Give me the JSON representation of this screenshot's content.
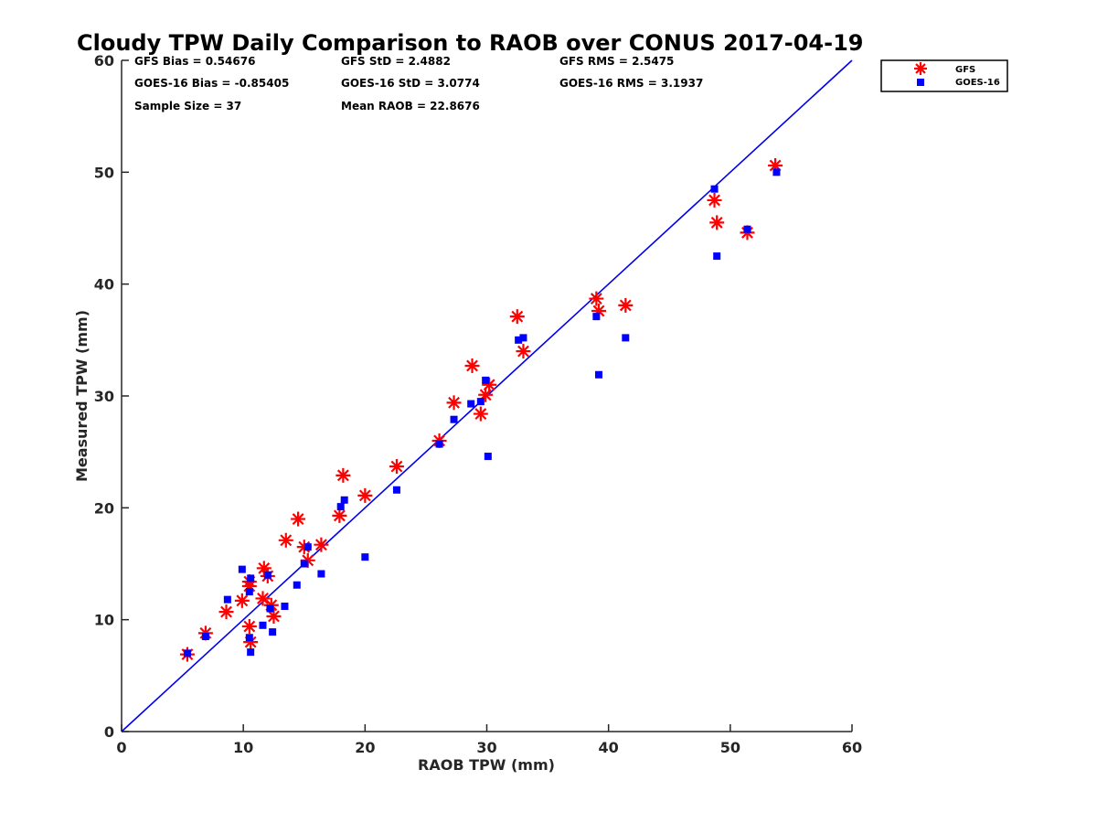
{
  "chart_data": {
    "type": "scatter",
    "title": "Cloudy TPW Daily Comparison to RAOB over CONUS 2017-04-19",
    "xlabel": "RAOB TPW (mm)",
    "ylabel": "Measured TPW (mm)",
    "xlim": [
      0,
      60
    ],
    "ylim": [
      0,
      60
    ],
    "xticks": [
      "0",
      "10",
      "20",
      "30",
      "40",
      "50",
      "60"
    ],
    "yticks": [
      "0",
      "10",
      "20",
      "30",
      "40",
      "50",
      "60"
    ],
    "grid": false,
    "legend_position": "outside-top-right",
    "stats": [
      "GFS Bias = 0.54676",
      "GFS StD = 2.4882",
      "GFS RMS = 2.5475",
      "GOES-16 Bias = -0.85405",
      "GOES-16 StD = 3.0774",
      "GOES-16 RMS = 3.1937",
      "Sample Size = 37",
      "Mean RAOB = 22.8676"
    ],
    "reference_line": {
      "x": [
        0,
        60
      ],
      "y": [
        0,
        60
      ],
      "color": "#0000ee"
    },
    "series": [
      {
        "name": "GFS",
        "marker": "asterisk",
        "color": "#ff0000",
        "x": [
          5.4,
          6.9,
          8.6,
          9.9,
          10.5,
          10.5,
          10.5,
          10.6,
          11.6,
          11.7,
          12.0,
          12.3,
          12.5,
          13.5,
          14.5,
          15.0,
          15.3,
          16.4,
          17.9,
          18.2,
          20.0,
          22.6,
          26.1,
          27.3,
          28.8,
          29.5,
          29.9,
          30.2,
          32.5,
          33.0,
          39.0,
          39.2,
          41.4,
          48.7,
          48.9,
          51.4,
          53.7
        ],
        "y": [
          6.9,
          8.8,
          10.7,
          11.7,
          9.4,
          13.0,
          13.4,
          8.0,
          11.9,
          14.6,
          13.9,
          11.3,
          10.3,
          17.1,
          19.0,
          16.5,
          15.3,
          16.7,
          19.3,
          22.9,
          21.1,
          23.7,
          26.0,
          29.4,
          32.7,
          28.4,
          30.1,
          31.0,
          37.1,
          34.0,
          38.7,
          37.6,
          38.1,
          47.5,
          45.5,
          44.6,
          50.6
        ]
      },
      {
        "name": "GOES-16",
        "marker": "square",
        "color": "#0000ff",
        "x": [
          5.4,
          6.9,
          8.7,
          9.9,
          10.5,
          10.5,
          10.6,
          10.6,
          11.6,
          12.0,
          12.2,
          12.4,
          13.4,
          14.4,
          15.0,
          15.3,
          16.4,
          18.0,
          18.3,
          20.0,
          22.6,
          26.1,
          27.3,
          28.7,
          29.5,
          29.9,
          30.1,
          32.6,
          33.0,
          39.0,
          39.2,
          41.4,
          48.7,
          48.9,
          51.4,
          53.8
        ],
        "y": [
          7.0,
          8.5,
          11.8,
          14.5,
          8.4,
          12.5,
          13.7,
          7.1,
          9.5,
          14.0,
          11.0,
          8.9,
          11.2,
          13.1,
          15.0,
          16.5,
          14.1,
          20.1,
          20.7,
          15.6,
          21.6,
          25.7,
          27.9,
          29.3,
          29.5,
          31.4,
          24.6,
          35.0,
          35.2,
          37.1,
          31.9,
          35.2,
          48.5,
          42.5,
          44.9,
          50.0
        ]
      }
    ]
  }
}
